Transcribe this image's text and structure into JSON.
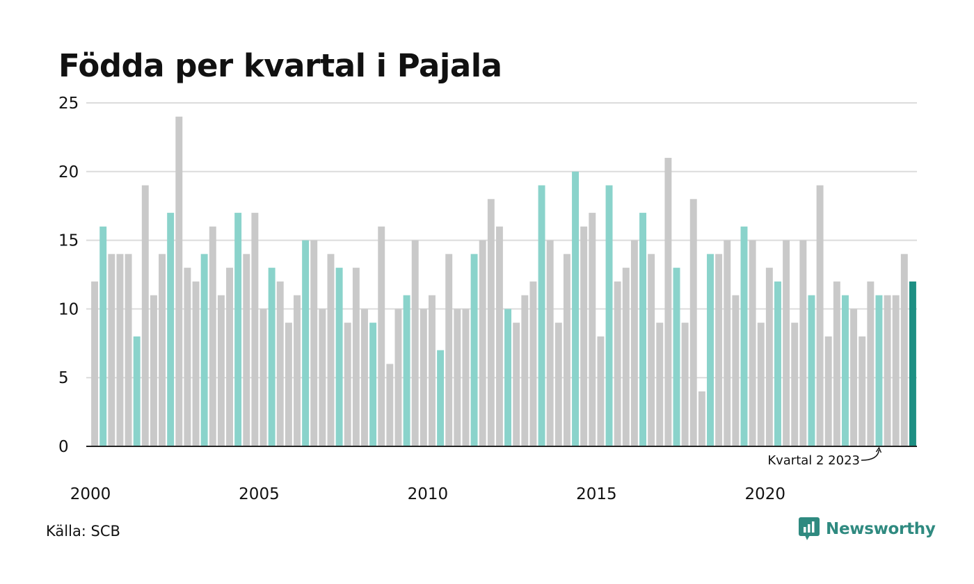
{
  "title": "Födda per kvartal i Pajala",
  "source": "Källa: SCB",
  "logo": {
    "text": "Newsworthy",
    "icon": "newsworthy-chart-bubble-icon"
  },
  "colors": {
    "bar_default": "#c9c9c9",
    "bar_highlight": "#8ad3cb",
    "bar_latest": "#1d8f83",
    "grid": "#dcdcdc",
    "axis": "#222222",
    "brand": "#2f8a80"
  },
  "chart_data": {
    "type": "bar",
    "title": "Födda per kvartal i Pajala",
    "xlabel": "",
    "ylabel": "",
    "ylim": [
      0,
      25
    ],
    "yticks": [
      "0",
      "5",
      "10",
      "15",
      "20",
      "25"
    ],
    "xticks": [
      {
        "label": "2000",
        "index": 0
      },
      {
        "label": "2005",
        "index": 20
      },
      {
        "label": "2010",
        "index": 40
      },
      {
        "label": "2015",
        "index": 60
      },
      {
        "label": "2020",
        "index": 80
      }
    ],
    "grid": true,
    "categories": [
      "2000K1",
      "2000K2",
      "2000K3",
      "2000K4",
      "2001K1",
      "2001K2",
      "2001K3",
      "2001K4",
      "2002K1",
      "2002K2",
      "2002K3",
      "2002K4",
      "2003K1",
      "2003K2",
      "2003K3",
      "2003K4",
      "2004K1",
      "2004K2",
      "2004K3",
      "2004K4",
      "2005K1",
      "2005K2",
      "2005K3",
      "2005K4",
      "2006K1",
      "2006K2",
      "2006K3",
      "2006K4",
      "2007K1",
      "2007K2",
      "2007K3",
      "2007K4",
      "2008K1",
      "2008K2",
      "2008K3",
      "2008K4",
      "2009K1",
      "2009K2",
      "2009K3",
      "2009K4",
      "2010K1",
      "2010K2",
      "2010K3",
      "2010K4",
      "2011K1",
      "2011K2",
      "2011K3",
      "2011K4",
      "2012K1",
      "2012K2",
      "2012K3",
      "2012K4",
      "2013K1",
      "2013K2",
      "2013K3",
      "2013K4",
      "2014K1",
      "2014K2",
      "2014K3",
      "2014K4",
      "2015K1",
      "2015K2",
      "2015K3",
      "2015K4",
      "2016K1",
      "2016K2",
      "2016K3",
      "2016K4",
      "2017K1",
      "2017K2",
      "2017K3",
      "2017K4",
      "2018K1",
      "2018K2",
      "2018K3",
      "2018K4",
      "2019K1",
      "2019K2",
      "2019K3",
      "2019K4",
      "2020K1",
      "2020K2",
      "2020K3",
      "2020K4",
      "2021K1",
      "2021K2",
      "2021K3",
      "2021K4",
      "2022K1",
      "2022K2",
      "2022K3",
      "2022K4",
      "2023K1",
      "2023K2",
      "2023K3",
      "2023K4",
      "2024K1",
      "2024K2"
    ],
    "values": [
      12,
      16,
      14,
      14,
      14,
      8,
      19,
      11,
      14,
      17,
      24,
      13,
      12,
      14,
      16,
      11,
      13,
      17,
      14,
      17,
      10,
      13,
      12,
      9,
      11,
      15,
      15,
      10,
      14,
      13,
      9,
      13,
      10,
      9,
      16,
      6,
      10,
      11,
      15,
      10,
      11,
      7,
      14,
      10,
      10,
      14,
      15,
      18,
      16,
      10,
      9,
      11,
      12,
      19,
      15,
      9,
      14,
      20,
      16,
      17,
      8,
      19,
      12,
      13,
      15,
      17,
      14,
      9,
      21,
      13,
      9,
      18,
      4,
      14,
      14,
      15,
      11,
      16,
      15,
      9,
      13,
      12,
      15,
      9,
      15,
      11,
      19,
      8,
      12,
      11,
      10,
      8,
      12,
      11,
      11,
      11,
      14,
      12
    ],
    "highlight_quarter": 2,
    "annotation": {
      "text": "Kvartal 2 2023",
      "index": 93
    }
  }
}
